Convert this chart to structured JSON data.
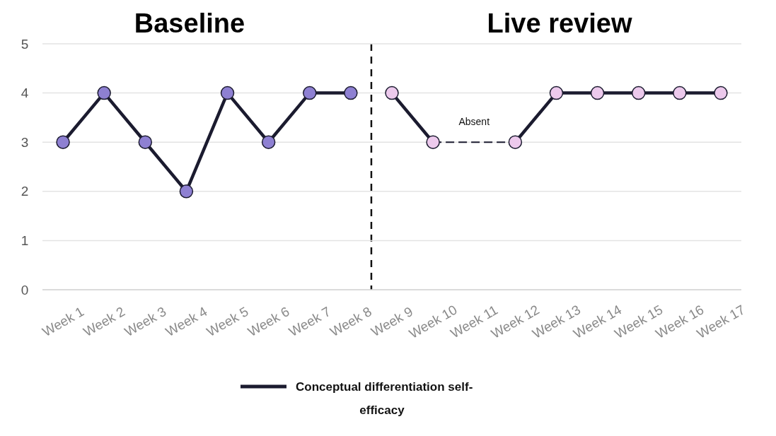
{
  "chart_data": {
    "type": "line",
    "categories": [
      "Week 1",
      "Week 2",
      "Week 3",
      "Week 4",
      "Week 5",
      "Week 6",
      "Week 7",
      "Week 8",
      "Week 9",
      "Week 10",
      "Week 11",
      "Week 12",
      "Week 13",
      "Week 14",
      "Week 15",
      "Week 16",
      "Week 17"
    ],
    "series": [
      {
        "name": "Conceptual differentiation self-efficacy",
        "color": "#1b1b2f",
        "marker": "circle",
        "colors": [
          "#8e80d2",
          "#8e80d2",
          "#8e80d2",
          "#8e80d2",
          "#8e80d2",
          "#8e80d2",
          "#8e80d2",
          "#8e80d2",
          null,
          null,
          null,
          null,
          null,
          null,
          null,
          null,
          null
        ],
        "values": [
          3,
          4,
          3,
          2,
          4,
          3,
          4,
          4,
          null,
          null,
          null,
          null,
          null,
          null,
          null,
          null,
          null
        ]
      },
      {
        "color": "#1b1b2f",
        "marker": "circle",
        "colors": [
          null,
          null,
          null,
          null,
          null,
          null,
          null,
          null,
          "#ecc9ec",
          "#ecc9ec",
          null,
          "#ecc9ec",
          "#ecc9ec",
          "#ecc9ec",
          "#ecc9ec",
          "#ecc9ec",
          "#ecc9ec"
        ],
        "values": [
          null,
          null,
          null,
          null,
          null,
          null,
          null,
          null,
          4,
          3,
          null,
          3,
          4,
          4,
          4,
          4,
          4
        ]
      }
    ],
    "ylim": [
      0,
      5
    ],
    "yticks": [
      0,
      1,
      2,
      3,
      4,
      5
    ],
    "grid": "y",
    "legend": "bottom",
    "annotations": [
      "Baseline",
      "Live review",
      "Absent"
    ]
  }
}
